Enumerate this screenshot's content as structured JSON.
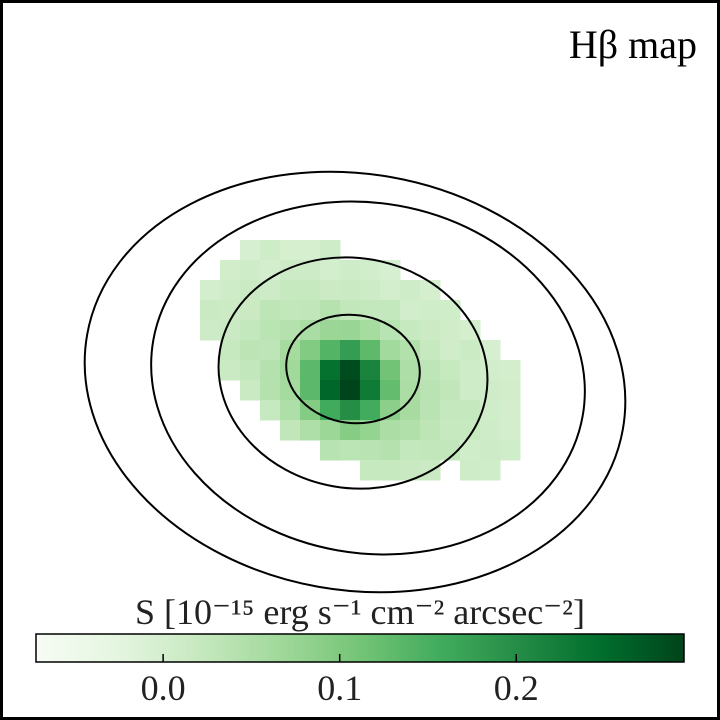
{
  "chart_data": {
    "type": "heatmap",
    "title": "Hβ map",
    "colorbar": {
      "label": "S [10⁻¹⁵ erg s⁻¹ cm⁻² arcsec⁻²]",
      "vmin": -0.072,
      "vmax": 0.295,
      "ticks": [
        0.0,
        0.1,
        0.2
      ],
      "tick_labels": [
        "0.0",
        "0.1",
        "0.2"
      ],
      "colormap": "Greens",
      "colors": [
        "#f7fcf5",
        "#e5f5e0",
        "#c7e9c0",
        "#a1d99b",
        "#74c476",
        "#41ab5d",
        "#238b45",
        "#006d2c",
        "#00441b"
      ]
    },
    "map": {
      "center_value": 0.295,
      "contours": 4
    }
  }
}
